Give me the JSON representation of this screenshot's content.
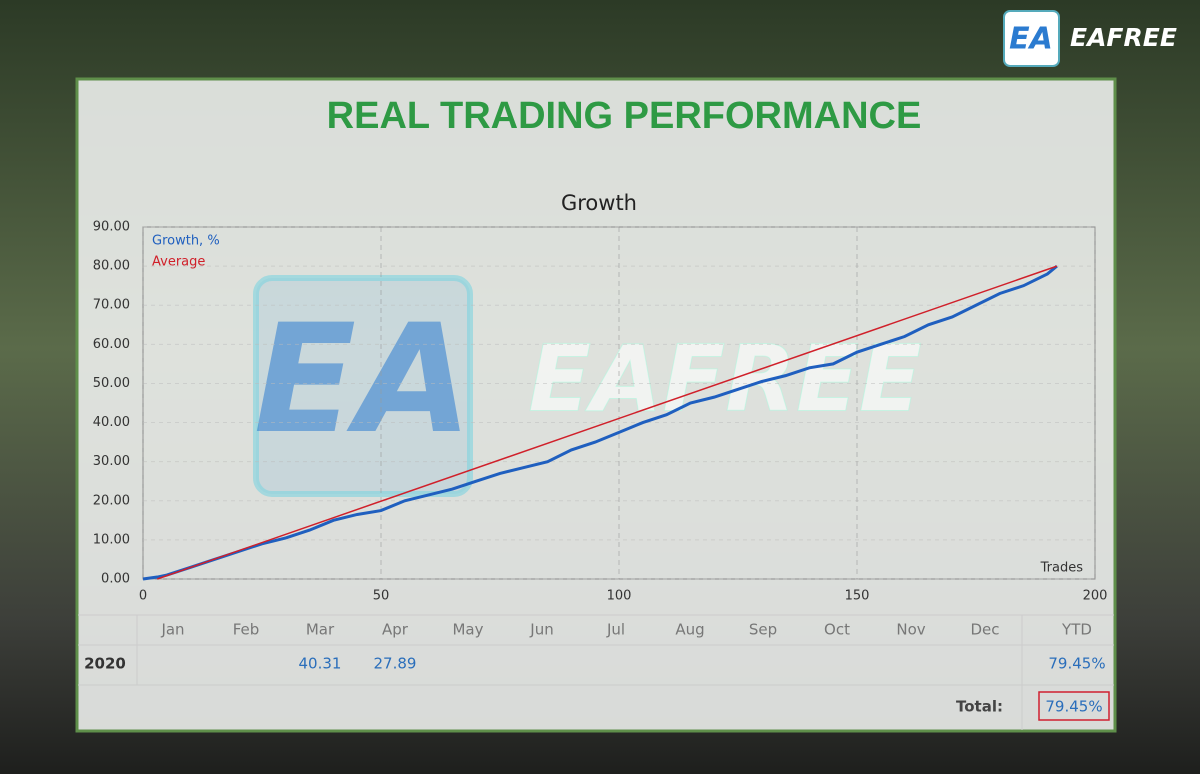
{
  "header": {
    "brand": "EAFREE",
    "logo": "EA",
    "title": "REAL TRADING PERFORMANCE"
  },
  "chart_data": {
    "type": "line",
    "title": "Growth",
    "x_label": "Trades",
    "xlim": [
      0,
      200
    ],
    "xticks": [
      0,
      50,
      100,
      150,
      200
    ],
    "ylim": [
      0,
      90
    ],
    "yticks": [
      {
        "value": 0,
        "label": "0.00"
      },
      {
        "value": 10,
        "label": "10.00"
      },
      {
        "value": 20,
        "label": "20.00"
      },
      {
        "value": 30,
        "label": "30.00"
      },
      {
        "value": 40,
        "label": "40.00"
      },
      {
        "value": 50,
        "label": "50.00"
      },
      {
        "value": 60,
        "label": "60.00"
      },
      {
        "value": 70,
        "label": "70.00"
      },
      {
        "value": 80,
        "label": "80.00"
      },
      {
        "value": 90,
        "label": "90.00"
      }
    ],
    "grid": true,
    "legend": "top-left",
    "series": [
      {
        "name": "Growth, %",
        "color": "#1f5fbf",
        "x": [
          0,
          3,
          5,
          10,
          15,
          20,
          25,
          30,
          35,
          40,
          45,
          50,
          55,
          60,
          65,
          70,
          75,
          80,
          85,
          90,
          95,
          100,
          105,
          110,
          115,
          120,
          125,
          130,
          135,
          140,
          145,
          150,
          155,
          160,
          165,
          170,
          175,
          180,
          185,
          190,
          192
        ],
        "values": [
          0,
          0.5,
          1,
          3,
          5,
          7,
          9,
          10.5,
          12.5,
          15,
          16.5,
          17.5,
          20,
          21.5,
          23,
          25,
          27,
          28.5,
          30,
          33,
          35,
          37.5,
          40,
          42,
          45,
          46.5,
          48.5,
          50.5,
          52,
          54,
          55,
          58,
          60,
          62,
          65,
          67,
          70,
          73,
          75,
          78,
          80
        ]
      },
      {
        "name": "Average",
        "color": "#d0202a",
        "x": [
          3,
          192
        ],
        "values": [
          0,
          80
        ]
      }
    ]
  },
  "table": {
    "columns": [
      "Jan",
      "Feb",
      "Mar",
      "Apr",
      "May",
      "Jun",
      "Jul",
      "Aug",
      "Sep",
      "Oct",
      "Nov",
      "Dec",
      "YTD"
    ],
    "rows": [
      {
        "label": "2020",
        "cells": [
          null,
          null,
          "40.31",
          "27.89",
          null,
          null,
          null,
          null,
          null,
          null,
          null,
          null,
          "79.45%"
        ]
      }
    ],
    "total_label": "Total:",
    "total": "79.45%"
  }
}
